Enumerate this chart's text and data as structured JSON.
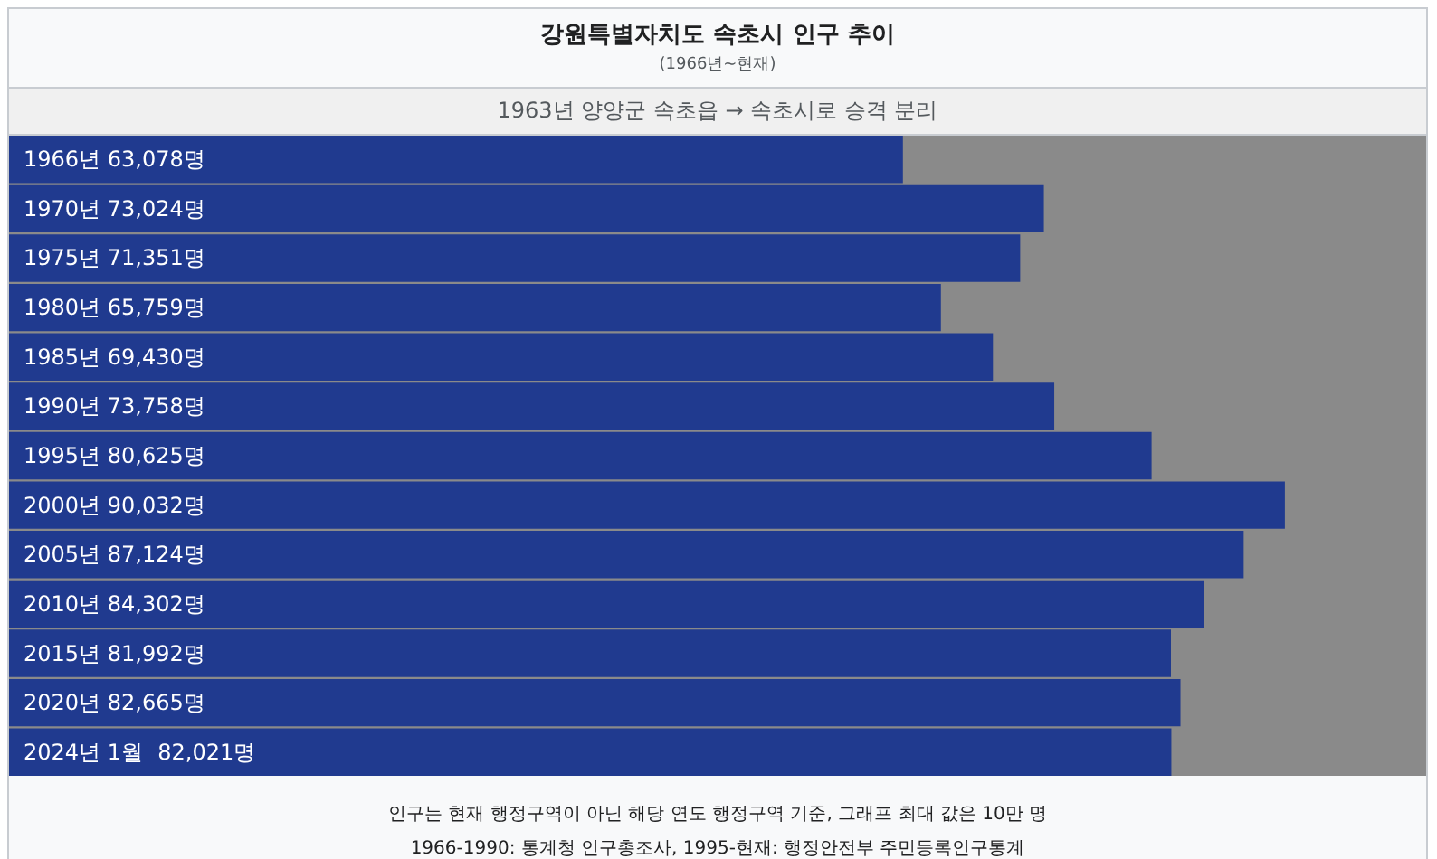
{
  "chart_data": {
    "type": "bar",
    "orientation": "horizontal",
    "title": "강원특별자치도 속초시 인구 추이",
    "subtitle": "(1966년~현재)",
    "categories": [
      "1966년",
      "1970년",
      "1975년",
      "1980년",
      "1985년",
      "1990년",
      "1995년",
      "2000년",
      "2005년",
      "2010년",
      "2015년",
      "2020년",
      "2024년 1월"
    ],
    "values": [
      63078,
      73024,
      71351,
      65759,
      69430,
      73758,
      80625,
      90032,
      87124,
      84302,
      81992,
      82665,
      82021
    ],
    "value_labels": [
      "63,078명",
      "73,024명",
      "71,351명",
      "65,759명",
      "69,430명",
      "73,758명",
      "80,625명",
      "90,032명",
      "87,124명",
      "84,302명",
      "81,992명",
      "82,665명",
      "82,021명"
    ],
    "color": "#203a8f",
    "xlim": [
      0,
      100000
    ],
    "annotations": [
      "1963년 양양군 속초읍 → 속초시로 승격 분리",
      "인구는 현재 행정구역이 아닌 해당 연도 행정구역 기준, 그래프 최대 값은 10만 명",
      "1966-1990: 통계청 인구총조사, 1995-현재: 행정안전부 주민등록인구통계"
    ]
  }
}
